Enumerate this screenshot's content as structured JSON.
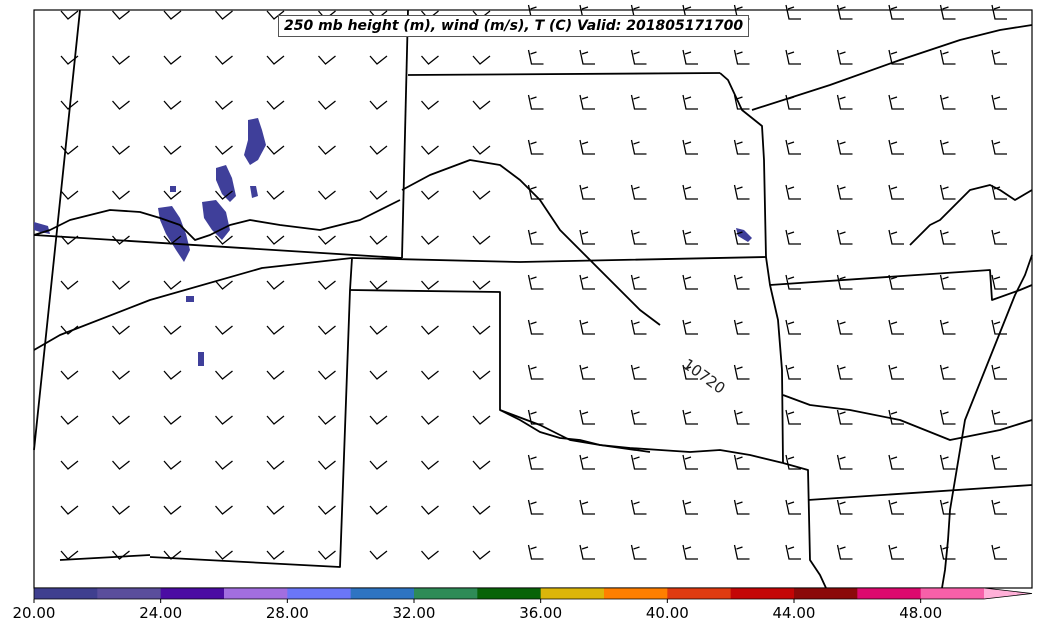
{
  "map": {
    "title": "250 mb height (m), wind (m/s), T (C) Valid: 201805171700",
    "contour_label": "10720",
    "contour_color": "#000000",
    "temperature_color": "#3f3f9a",
    "barb_color": "#000000"
  },
  "colorbar": {
    "ticks": [
      "20.00",
      "24.00",
      "28.00",
      "32.00",
      "36.00",
      "40.00",
      "44.00",
      "48.00"
    ],
    "colors": [
      "#3f3f8f",
      "#5a4e9c",
      "#4b0ca3",
      "#a26ee0",
      "#6b76f7",
      "#2e74c2",
      "#2e8b57",
      "#086308",
      "#dcb60a",
      "#ff7f00",
      "#e03b10",
      "#c40606",
      "#8b0a0a",
      "#dc0a6e",
      "#f760a9"
    ],
    "extend_color": "#ffb0d8"
  }
}
